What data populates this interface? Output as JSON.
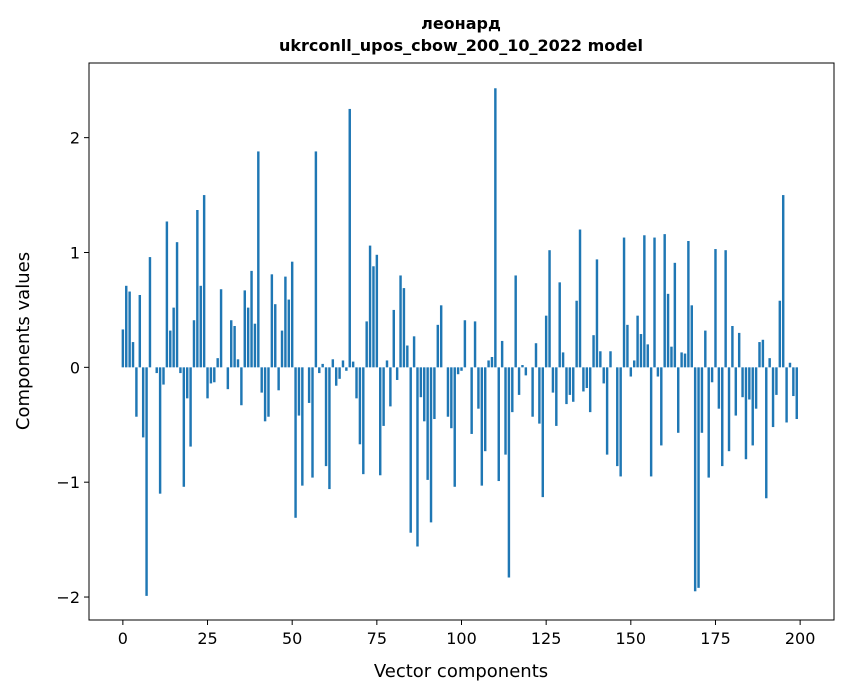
{
  "chart_data": {
    "type": "bar",
    "title_line1": "леонард",
    "title_line2": "ukrconll_upos_cbow_200_10_2022 model",
    "xlabel": "Vector components",
    "ylabel": "Components values",
    "xlim": [
      -10,
      210
    ],
    "ylim": [
      -2.2,
      2.65
    ],
    "xticks": [
      0,
      25,
      50,
      75,
      100,
      125,
      150,
      175,
      200
    ],
    "yticks": [
      -2,
      -1,
      0,
      1,
      2
    ],
    "ytick_labels": [
      "−2",
      "−1",
      "0",
      "1",
      "2"
    ],
    "bar_color": "#1f77b4",
    "grid": false,
    "x": [
      0,
      1,
      2,
      3,
      4,
      5,
      6,
      7,
      8,
      9,
      10,
      11,
      12,
      13,
      14,
      15,
      16,
      17,
      18,
      19,
      20,
      21,
      22,
      23,
      24,
      25,
      26,
      27,
      28,
      29,
      30,
      31,
      32,
      33,
      34,
      35,
      36,
      37,
      38,
      39,
      40,
      41,
      42,
      43,
      44,
      45,
      46,
      47,
      48,
      49,
      50,
      51,
      52,
      53,
      54,
      55,
      56,
      57,
      58,
      59,
      60,
      61,
      62,
      63,
      64,
      65,
      66,
      67,
      68,
      69,
      70,
      71,
      72,
      73,
      74,
      75,
      76,
      77,
      78,
      79,
      80,
      81,
      82,
      83,
      84,
      85,
      86,
      87,
      88,
      89,
      90,
      91,
      92,
      93,
      94,
      95,
      96,
      97,
      98,
      99,
      100,
      101,
      102,
      103,
      104,
      105,
      106,
      107,
      108,
      109,
      110,
      111,
      112,
      113,
      114,
      115,
      116,
      117,
      118,
      119,
      120,
      121,
      122,
      123,
      124,
      125,
      126,
      127,
      128,
      129,
      130,
      131,
      132,
      133,
      134,
      135,
      136,
      137,
      138,
      139,
      140,
      141,
      142,
      143,
      144,
      145,
      146,
      147,
      148,
      149,
      150,
      151,
      152,
      153,
      154,
      155,
      156,
      157,
      158,
      159,
      160,
      161,
      162,
      163,
      164,
      165,
      166,
      167,
      168,
      169,
      170,
      171,
      172,
      173,
      174,
      175,
      176,
      177,
      178,
      179,
      180,
      181,
      182,
      183,
      184,
      185,
      186,
      187,
      188,
      189,
      190,
      191,
      192,
      193,
      194,
      195,
      196,
      197,
      198,
      199
    ],
    "values": [
      0.33,
      0.71,
      0.66,
      0.22,
      -0.43,
      0.63,
      -0.61,
      -1.99,
      0.96,
      0.0,
      -0.05,
      -1.1,
      -0.15,
      1.27,
      0.32,
      0.52,
      1.09,
      -0.05,
      -1.04,
      -0.27,
      -0.69,
      0.41,
      1.37,
      0.71,
      1.5,
      -0.27,
      -0.14,
      -0.13,
      0.08,
      0.68,
      0.0,
      -0.19,
      0.41,
      0.36,
      0.07,
      -0.33,
      0.67,
      0.52,
      0.84,
      0.38,
      1.88,
      -0.22,
      -0.47,
      -0.43,
      0.81,
      0.55,
      -0.2,
      0.32,
      0.79,
      0.59,
      0.92,
      -1.31,
      -0.42,
      -1.03,
      0.0,
      -0.31,
      -0.96,
      1.88,
      -0.05,
      0.03,
      -0.86,
      -1.06,
      0.07,
      -0.16,
      -0.1,
      0.06,
      -0.03,
      2.25,
      0.05,
      -0.27,
      -0.67,
      -0.93,
      0.4,
      1.06,
      0.88,
      0.98,
      -0.94,
      -0.51,
      0.06,
      -0.34,
      0.5,
      -0.11,
      0.8,
      0.69,
      0.19,
      -1.44,
      0.27,
      -1.56,
      -0.26,
      -0.47,
      -0.98,
      -1.35,
      -0.45,
      0.37,
      0.54,
      0.0,
      -0.43,
      -0.53,
      -1.04,
      -0.06,
      -0.03,
      0.41,
      0.0,
      -0.58,
      0.4,
      -0.36,
      -1.03,
      -0.73,
      0.06,
      0.09,
      2.43,
      -0.99,
      0.23,
      -0.76,
      -1.83,
      -0.39,
      0.8,
      -0.24,
      0.02,
      -0.07,
      0.0,
      -0.43,
      0.21,
      -0.49,
      -1.13,
      0.45,
      1.02,
      -0.22,
      -0.51,
      0.74,
      0.13,
      -0.32,
      -0.24,
      -0.3,
      0.58,
      1.2,
      -0.21,
      -0.18,
      -0.39,
      0.28,
      0.94,
      0.14,
      -0.14,
      -0.76,
      0.14,
      0.0,
      -0.86,
      -0.95,
      1.13,
      0.37,
      -0.08,
      0.06,
      0.45,
      0.29,
      1.15,
      0.2,
      -0.95,
      1.13,
      -0.08,
      -0.68,
      1.16,
      0.64,
      0.18,
      0.91,
      -0.57,
      0.13,
      0.12,
      1.1,
      0.54,
      -1.95,
      -1.92,
      -0.57,
      0.32,
      -0.96,
      -0.13,
      1.03,
      -0.36,
      -0.86,
      1.02,
      -0.73,
      0.36,
      -0.42,
      0.3,
      -0.26,
      -0.8,
      -0.28,
      -0.68,
      -0.36,
      0.22,
      0.24,
      -1.14,
      0.08,
      -0.52,
      -0.24,
      0.58,
      1.5,
      -0.48,
      0.04,
      -0.25,
      -0.45
    ]
  }
}
